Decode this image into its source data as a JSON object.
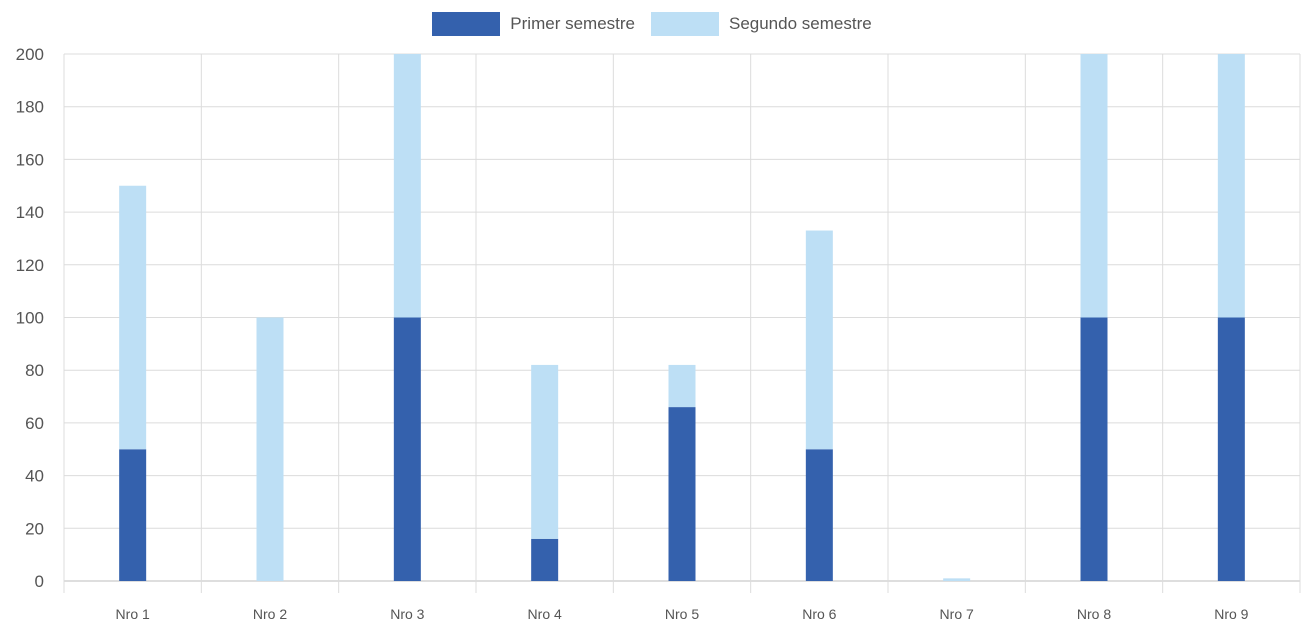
{
  "chart_data": {
    "type": "bar",
    "stacked": true,
    "categories": [
      "Nro 1",
      "Nro 2",
      "Nro 3",
      "Nro 4",
      "Nro 5",
      "Nro 6",
      "Nro 7",
      "Nro 8",
      "Nro 9"
    ],
    "series": [
      {
        "name": "Primer semestre",
        "color": "#3461ad",
        "values": [
          50,
          0,
          100,
          16,
          66,
          50,
          0,
          100,
          100
        ]
      },
      {
        "name": "Segundo semestre",
        "color": "#bddff5",
        "values": [
          100,
          100,
          100,
          66,
          16,
          83,
          1,
          100,
          100
        ]
      }
    ],
    "ylim": [
      0,
      200
    ],
    "yticks": [
      "0",
      "20",
      "40",
      "60",
      "80",
      "100",
      "120",
      "140",
      "160",
      "180",
      "200"
    ],
    "grid": true,
    "legend_position": "top-center"
  }
}
